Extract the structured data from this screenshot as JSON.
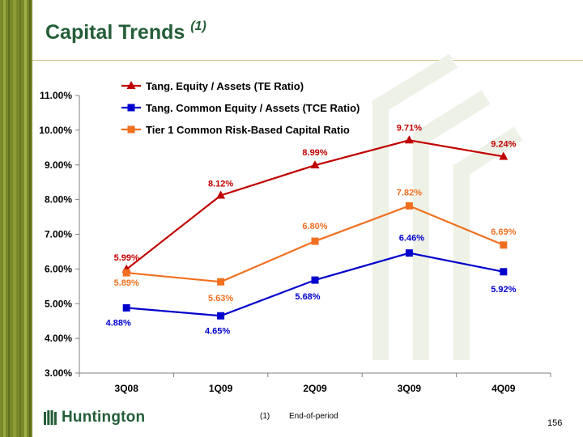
{
  "slide": {
    "title": "Capital Trends",
    "title_superscript": "(1)",
    "footnote_marker": "(1)",
    "footnote_text": "End-of-period",
    "page_number": "156",
    "logo_text": "Huntington"
  },
  "colors": {
    "title": "#245e38",
    "sidebar": "#7a8a2a",
    "te_ratio": "#c00000",
    "tce_ratio": "#0000cc",
    "tier1_ratio": "#f07020"
  },
  "chart_data": {
    "type": "line",
    "categories": [
      "3Q08",
      "1Q09",
      "2Q09",
      "3Q09",
      "4Q09"
    ],
    "y_ticks": [
      "3.00%",
      "4.00%",
      "5.00%",
      "6.00%",
      "7.00%",
      "8.00%",
      "9.00%",
      "10.00%",
      "11.00%"
    ],
    "ylim": [
      3,
      11
    ],
    "grid": false,
    "legend": "top-left",
    "series": [
      {
        "name": "Tang. Equity / Assets (TE Ratio)",
        "marker": "triangle",
        "color": "#c00000",
        "values": [
          5.99,
          8.12,
          8.99,
          9.71,
          9.24
        ],
        "labels": [
          "5.99%",
          "8.12%",
          "8.99%",
          "9.71%",
          "9.24%"
        ]
      },
      {
        "name": "Tang. Common Equity / Assets (TCE Ratio)",
        "marker": "square",
        "color": "#0000cc",
        "values": [
          4.88,
          4.65,
          5.68,
          6.46,
          5.92
        ],
        "labels": [
          "4.88%",
          "4.65%",
          "5.68%",
          "6.46%",
          "5.92%"
        ]
      },
      {
        "name": "Tier 1 Common Risk-Based Capital Ratio",
        "marker": "square",
        "color": "#f07020",
        "values": [
          5.89,
          5.63,
          6.8,
          7.82,
          6.69
        ],
        "labels": [
          "5.89%",
          "5.63%",
          "6.80%",
          "7.82%",
          "6.69%"
        ]
      }
    ]
  }
}
